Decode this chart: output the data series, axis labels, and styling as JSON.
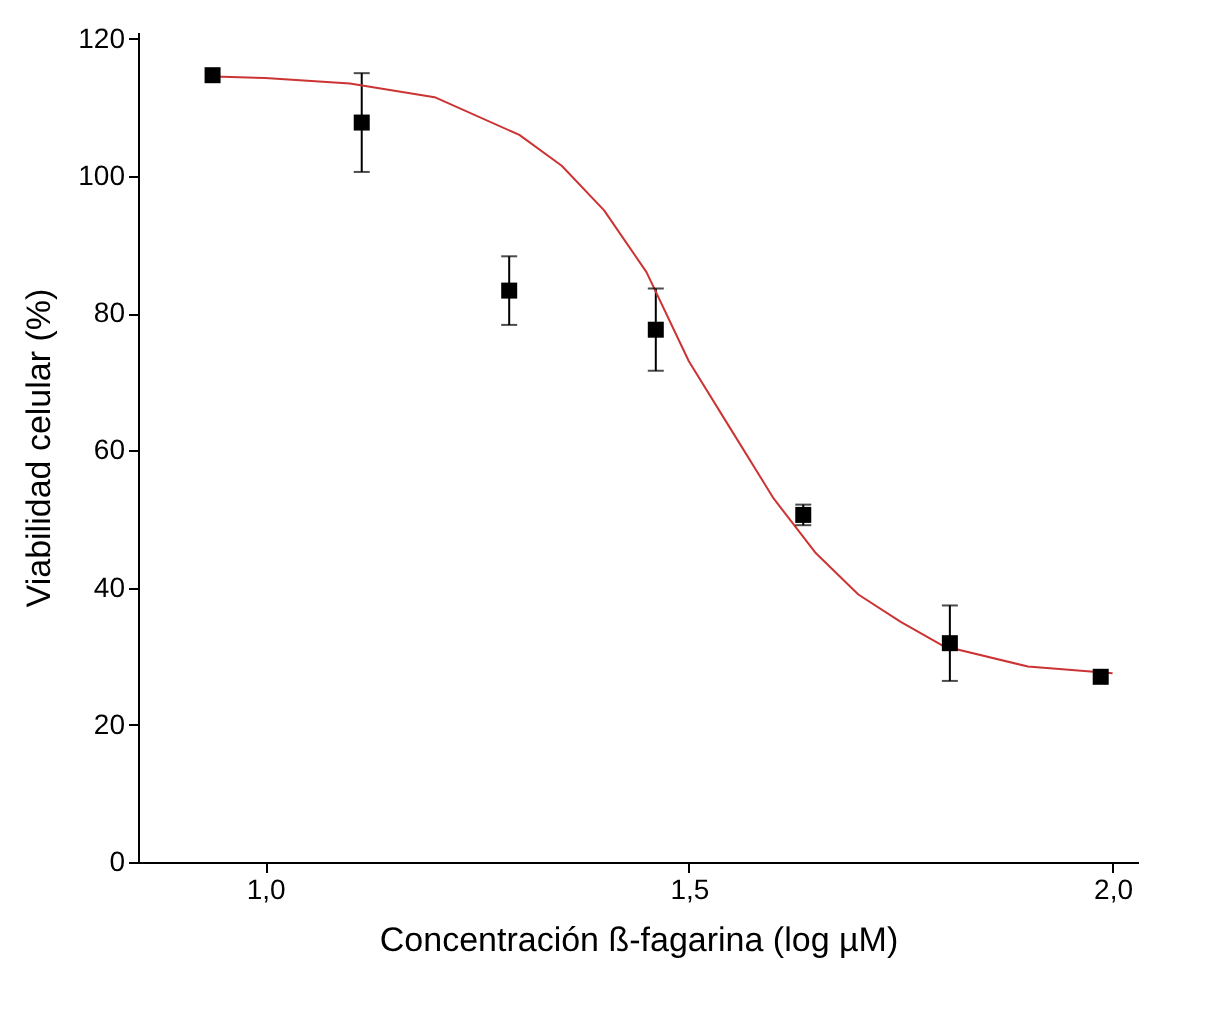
{
  "chart_data": {
    "type": "scatter",
    "xlabel": "Concentración ß-fagarina (log µM)",
    "ylabel": "Viabilidad celular (%)",
    "xlim": [
      0.85,
      2.03
    ],
    "xticks": [
      {
        "value": 1.0,
        "label": "1,0"
      },
      {
        "value": 1.5,
        "label": "1,5"
      },
      {
        "value": 2.0,
        "label": "2,0"
      }
    ],
    "ylim": [
      0,
      121
    ],
    "yticks": [
      0,
      20,
      40,
      60,
      80,
      100,
      120
    ],
    "grid": false,
    "series": [
      {
        "type": "scatter",
        "marker": "square",
        "color": "#000000",
        "x": [
          0.938,
          1.114,
          1.288,
          1.461,
          1.635,
          1.808,
          1.986
        ],
        "values": [
          114.7,
          107.8,
          83.3,
          77.6,
          50.6,
          31.9,
          27.0
        ],
        "errors": [
          null,
          7.2,
          5,
          6,
          1.5,
          5.5,
          null
        ]
      },
      {
        "type": "line",
        "marker": "none",
        "line_style": "solid",
        "color": "#cc3333",
        "x": [
          0.94,
          1.0,
          1.1,
          1.2,
          1.3,
          1.35,
          1.4,
          1.45,
          1.5,
          1.55,
          1.6,
          1.65,
          1.7,
          1.75,
          1.8,
          1.9,
          2.0
        ],
        "values": [
          114.5,
          114.3,
          113.5,
          111.5,
          106,
          101.5,
          95,
          86,
          73,
          63,
          53,
          45,
          39,
          35,
          31.5,
          28.5,
          27.5
        ]
      }
    ]
  }
}
